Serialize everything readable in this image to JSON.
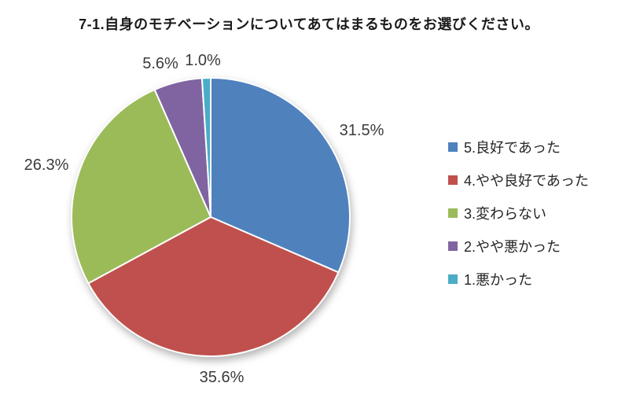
{
  "chart_data": {
    "type": "pie",
    "title": "7-1.自身のモチベーションについてあてはまるものをお選びください。",
    "categories": [
      "5.良好であった",
      "4.やや良好であった",
      "3.変わらない",
      "2.やや悪かった",
      "1.悪かった"
    ],
    "values": [
      31.5,
      35.6,
      26.3,
      5.6,
      1.0
    ],
    "labels": [
      "31.5%",
      "35.6%",
      "26.3%",
      "5.6%",
      "1.0%"
    ],
    "colors": [
      "#4f81bd",
      "#c0504d",
      "#9bbb59",
      "#8064a2",
      "#4bacc6"
    ],
    "legend_position": "right",
    "start_angle_deg": 0,
    "direction": "clockwise",
    "slice_border_color": "#ffffff",
    "background": "#ffffff"
  }
}
